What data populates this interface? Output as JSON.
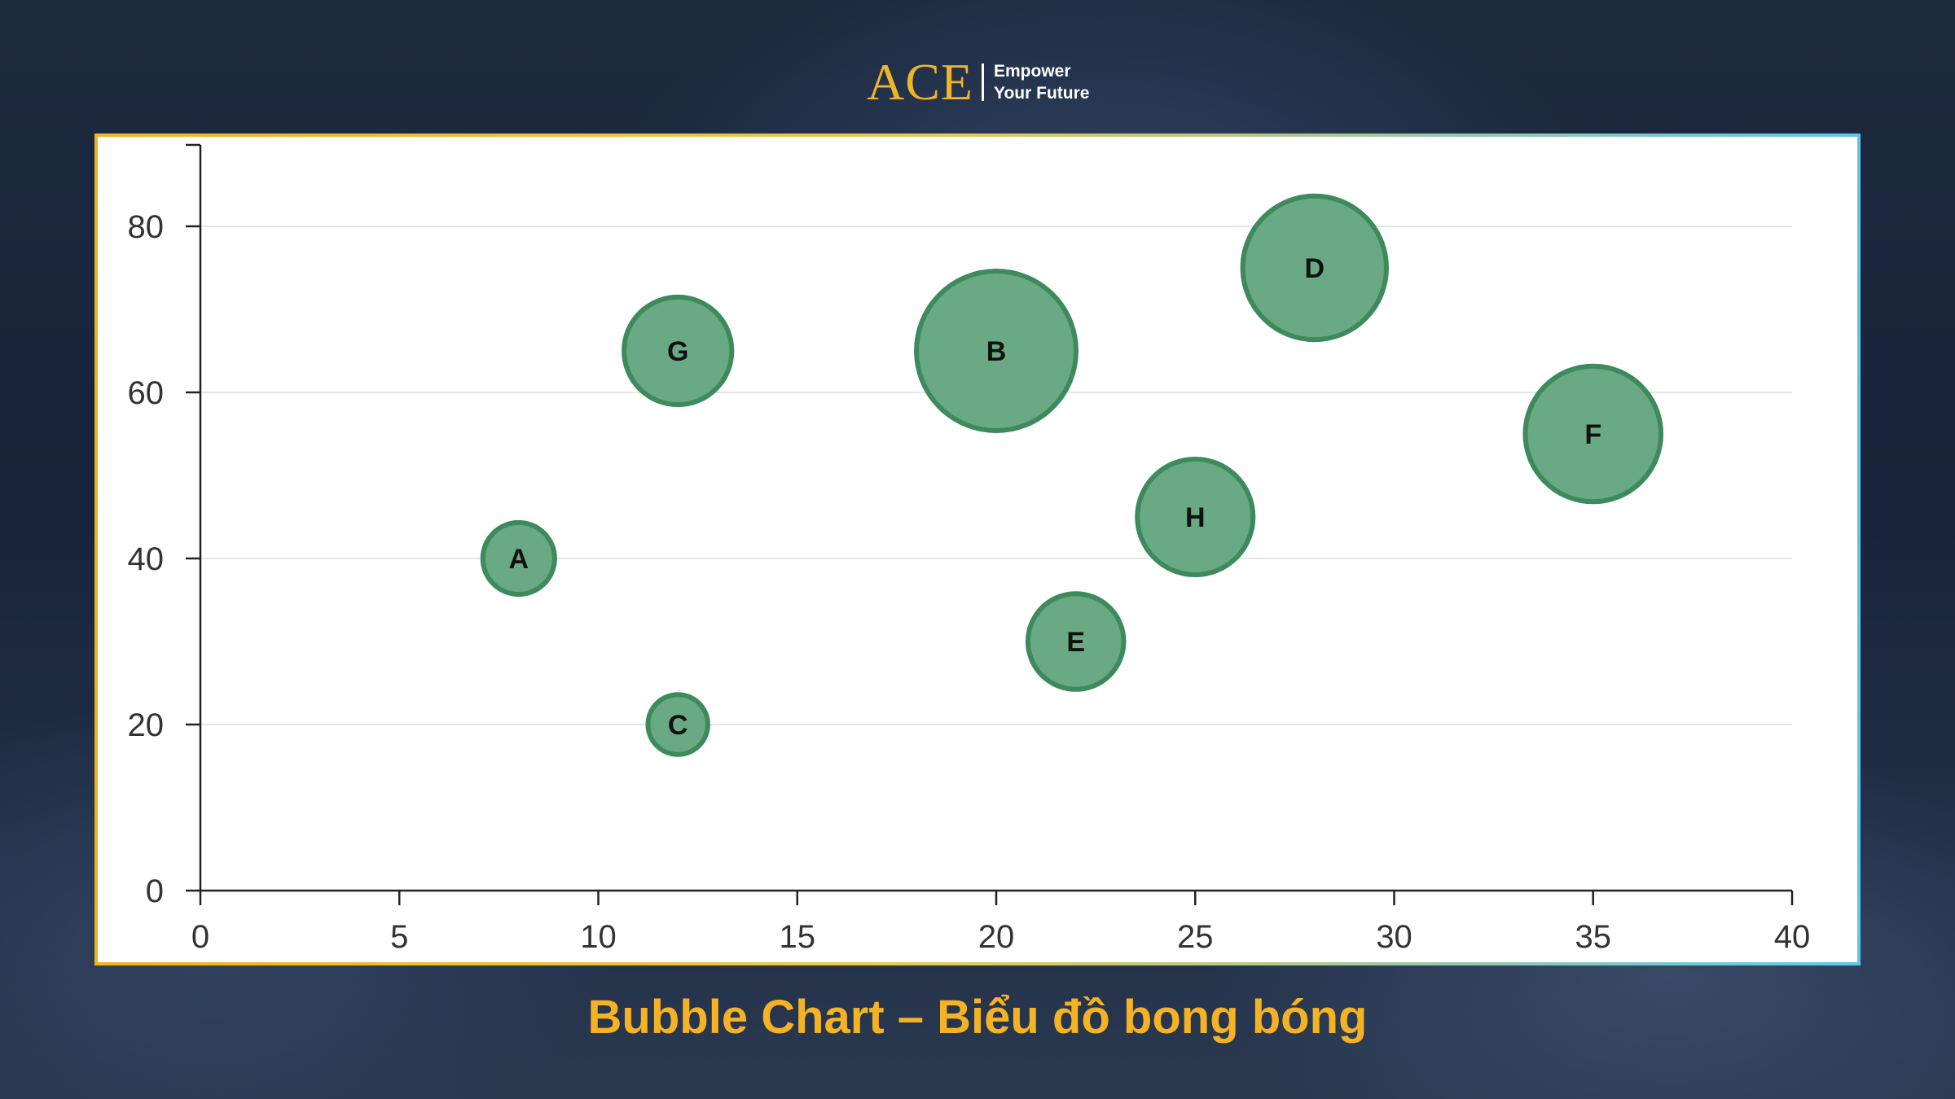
{
  "logo": {
    "mark": "ACE",
    "tagline": "Empower\nYour Future"
  },
  "caption": "Bubble Chart – Biểu đồ bong bóng",
  "colors": {
    "bubble_fill": "#69a983",
    "bubble_stroke": "#3d8a5c",
    "accent": "#f5b324",
    "axis": "#222222",
    "grid": "#e6e6e6"
  },
  "chart_data": {
    "type": "scatter",
    "variant": "bubble",
    "title": "",
    "xlabel": "",
    "ylabel": "",
    "xlim": [
      0,
      40
    ],
    "ylim": [
      0,
      90
    ],
    "xticks": [
      0,
      5,
      10,
      15,
      20,
      25,
      30,
      35,
      40
    ],
    "yticks": [
      0,
      20,
      40,
      60,
      80
    ],
    "grid": "horizontal",
    "points": [
      {
        "label": "A",
        "x": 8,
        "y": 40,
        "size": 9
      },
      {
        "label": "B",
        "x": 20,
        "y": 65,
        "size": 20
      },
      {
        "label": "C",
        "x": 12,
        "y": 20,
        "size": 7.5
      },
      {
        "label": "D",
        "x": 28,
        "y": 75,
        "size": 18
      },
      {
        "label": "E",
        "x": 22,
        "y": 30,
        "size": 12
      },
      {
        "label": "F",
        "x": 35,
        "y": 55,
        "size": 17
      },
      {
        "label": "G",
        "x": 12,
        "y": 65,
        "size": 13.5
      },
      {
        "label": "H",
        "x": 25,
        "y": 45,
        "size": 14.5
      }
    ]
  }
}
